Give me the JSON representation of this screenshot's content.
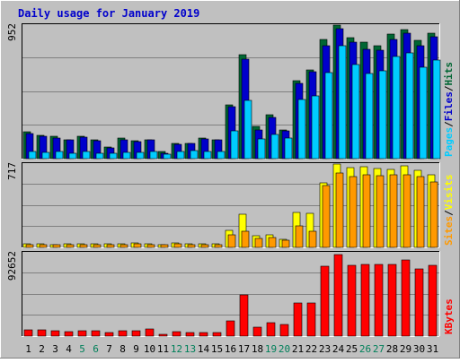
{
  "chart_data": [
    {
      "type": "bar",
      "title": "Daily usage for January 2019",
      "categories": [
        "1",
        "2",
        "3",
        "4",
        "5",
        "6",
        "7",
        "8",
        "9",
        "10",
        "11",
        "12",
        "13",
        "14",
        "15",
        "16",
        "17",
        "18",
        "19",
        "20",
        "21",
        "22",
        "23",
        "24",
        "25",
        "26",
        "27",
        "28",
        "29",
        "30",
        "31"
      ],
      "weekend_days": [
        "5",
        "6",
        "12",
        "13",
        "19",
        "20",
        "26",
        "27"
      ],
      "ylim": [
        0,
        952
      ],
      "max_label": "952",
      "right_labels": [
        "Pages",
        "Files",
        "Hits"
      ],
      "series": [
        {
          "name": "Hits",
          "color": "#006633",
          "values": [
            193,
            165,
            157,
            136,
            157,
            137,
            84,
            144,
            128,
            137,
            48,
            107,
            107,
            144,
            136,
            383,
            744,
            227,
            315,
            207,
            559,
            634,
            847,
            952,
            863,
            829,
            804,
            885,
            917,
            845,
            897
          ]
        },
        {
          "name": "Files",
          "color": "#0000cc",
          "values": [
            180,
            162,
            147,
            134,
            152,
            129,
            79,
            134,
            121,
            135,
            40,
            103,
            106,
            138,
            134,
            373,
            710,
            202,
            295,
            201,
            538,
            621,
            808,
            928,
            829,
            781,
            771,
            850,
            897,
            802,
            870
          ]
        },
        {
          "name": "Pages",
          "color": "#00ccff",
          "values": [
            50,
            47,
            48,
            41,
            49,
            40,
            36,
            46,
            46,
            48,
            34,
            50,
            58,
            52,
            50,
            198,
            415,
            138,
            175,
            146,
            421,
            445,
            612,
            807,
            671,
            608,
            629,
            727,
            756,
            651,
            704
          ]
        }
      ]
    },
    {
      "type": "bar",
      "categories": [
        "1",
        "2",
        "3",
        "4",
        "5",
        "6",
        "7",
        "8",
        "9",
        "10",
        "11",
        "12",
        "13",
        "14",
        "15",
        "16",
        "17",
        "18",
        "19",
        "20",
        "21",
        "22",
        "23",
        "24",
        "25",
        "26",
        "27",
        "28",
        "29",
        "30",
        "31"
      ],
      "ylim": [
        0,
        717
      ],
      "max_label": "717",
      "right_labels": [
        "Sites",
        "Visits"
      ],
      "series": [
        {
          "name": "Visits",
          "color": "#ffff00",
          "values": [
            28,
            28,
            25,
            27,
            28,
            33,
            28,
            33,
            35,
            31,
            25,
            39,
            30,
            33,
            33,
            150,
            282,
            102,
            107,
            70,
            303,
            294,
            558,
            717,
            690,
            691,
            676,
            670,
            705,
            666,
            623
          ]
        },
        {
          "name": "Sites",
          "color": "#ff9900",
          "values": [
            26,
            24,
            22,
            22,
            25,
            26,
            22,
            26,
            27,
            25,
            20,
            31,
            25,
            26,
            24,
            106,
            136,
            75,
            81,
            58,
            185,
            135,
            532,
            638,
            612,
            625,
            614,
            624,
            622,
            607,
            559
          ]
        }
      ]
    },
    {
      "type": "bar",
      "categories": [
        "1",
        "2",
        "3",
        "4",
        "5",
        "6",
        "7",
        "8",
        "9",
        "10",
        "11",
        "12",
        "13",
        "14",
        "15",
        "16",
        "17",
        "18",
        "19",
        "20",
        "21",
        "22",
        "23",
        "24",
        "25",
        "26",
        "27",
        "28",
        "29",
        "30",
        "31"
      ],
      "ylim": [
        0,
        92652
      ],
      "max_label": "92652",
      "right_labels": [
        "KBytes"
      ],
      "series": [
        {
          "name": "KBytes",
          "color": "#ff0000",
          "values": [
            7225,
            6976,
            6226,
            4734,
            6226,
            5979,
            3738,
            6226,
            5728,
            7473,
            1745,
            5230,
            3989,
            3738,
            3738,
            16954,
            45899,
            10222,
            15196,
            12463,
            36999,
            36747,
            77947,
            90895,
            79190,
            79689,
            79689,
            79689,
            85171,
            74716,
            78698
          ]
        }
      ]
    }
  ]
}
